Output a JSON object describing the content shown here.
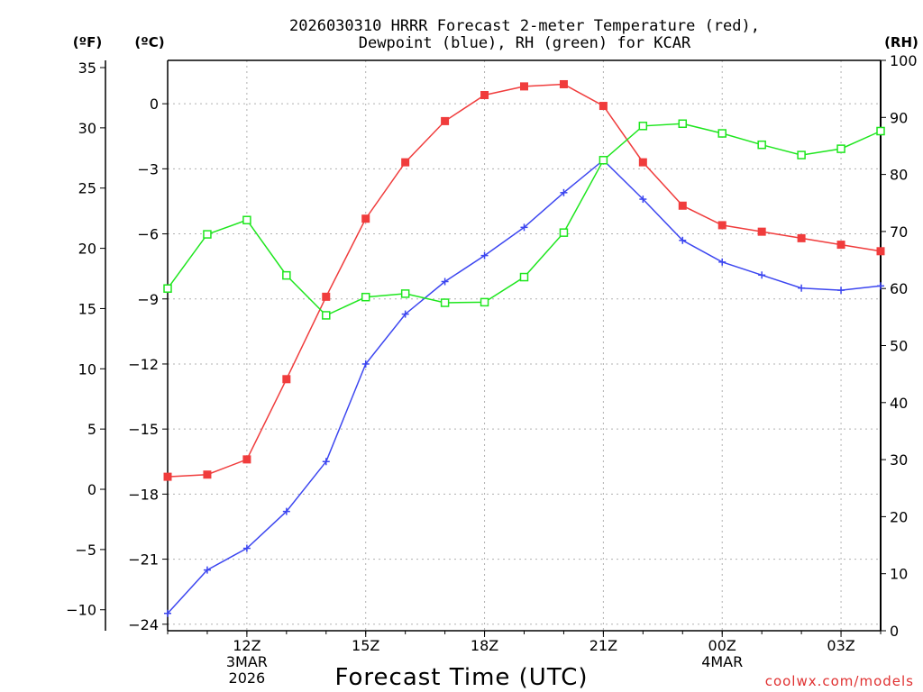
{
  "chart_data": {
    "type": "line",
    "title_line1": "2026030310 HRRR Forecast 2-meter Temperature (red),",
    "title_line2": "Dewpoint (blue), RH (green) for KCAR",
    "left_unit_f": "(ºF)",
    "left_unit_c": "(ºC)",
    "right_unit": "(RH)",
    "xlabel": "Forecast Time (UTC)",
    "credit": "coolwx.com/models",
    "x_hours": [
      10,
      11,
      12,
      13,
      14,
      15,
      16,
      17,
      18,
      19,
      20,
      21,
      22,
      23,
      24,
      25,
      26,
      27,
      28
    ],
    "x_range": [
      10,
      28
    ],
    "y_celsius_range": [
      -24.3,
      2.0
    ],
    "y_rh_range": [
      0,
      100
    ],
    "celsius_ticks": [
      {
        "v": 0,
        "label": "0"
      },
      {
        "v": -3,
        "label": "−3"
      },
      {
        "v": -6,
        "label": "−6"
      },
      {
        "v": -9,
        "label": "−9"
      },
      {
        "v": -12,
        "label": "−12"
      },
      {
        "v": -15,
        "label": "−15"
      },
      {
        "v": -18,
        "label": "−18"
      },
      {
        "v": -21,
        "label": "−21"
      },
      {
        "v": -24,
        "label": "−24"
      }
    ],
    "fahrenheit_ticks": [
      {
        "v": 35,
        "label": "35"
      },
      {
        "v": 30,
        "label": "30"
      },
      {
        "v": 25,
        "label": "25"
      },
      {
        "v": 20,
        "label": "20"
      },
      {
        "v": 15,
        "label": "15"
      },
      {
        "v": 10,
        "label": "10"
      },
      {
        "v": 5,
        "label": "5"
      },
      {
        "v": 0,
        "label": "0"
      },
      {
        "v": -5,
        "label": "−5"
      },
      {
        "v": -10,
        "label": "−10"
      }
    ],
    "rh_ticks": [
      {
        "v": 100,
        "label": "100"
      },
      {
        "v": 90,
        "label": "90"
      },
      {
        "v": 80,
        "label": "80"
      },
      {
        "v": 70,
        "label": "70"
      },
      {
        "v": 60,
        "label": "60"
      },
      {
        "v": 50,
        "label": "50"
      },
      {
        "v": 40,
        "label": "40"
      },
      {
        "v": 30,
        "label": "30"
      },
      {
        "v": 20,
        "label": "20"
      },
      {
        "v": 10,
        "label": "10"
      },
      {
        "v": 0,
        "label": "0"
      }
    ],
    "x_ticks": [
      {
        "h": 12,
        "lines": [
          "12Z",
          "3MAR",
          "2026"
        ]
      },
      {
        "h": 15,
        "lines": [
          "15Z"
        ]
      },
      {
        "h": 18,
        "lines": [
          "18Z"
        ]
      },
      {
        "h": 21,
        "lines": [
          "21Z"
        ]
      },
      {
        "h": 24,
        "lines": [
          "00Z",
          "4MAR"
        ]
      },
      {
        "h": 27,
        "lines": [
          "03Z"
        ]
      }
    ],
    "series": [
      {
        "name": "Temperature",
        "axis": "celsius",
        "color": "#f03c3c",
        "marker": "filled-square",
        "values": [
          -17.2,
          -17.1,
          -16.4,
          -12.7,
          -8.9,
          -5.3,
          -2.7,
          -0.8,
          0.4,
          0.8,
          0.9,
          -0.1,
          -2.7,
          -4.7,
          -5.6,
          -5.9,
          -6.2,
          -6.5,
          -6.8
        ]
      },
      {
        "name": "Dewpoint",
        "axis": "celsius",
        "color": "#3c46f0",
        "marker": "plus",
        "values": [
          -23.5,
          -21.5,
          -20.5,
          -18.8,
          -16.5,
          -12.0,
          -9.7,
          -8.2,
          -7.0,
          -5.7,
          -4.1,
          -2.6,
          -4.4,
          -6.3,
          -7.3,
          -7.9,
          -8.5,
          -8.6,
          -8.4
        ]
      },
      {
        "name": "RH",
        "axis": "rh",
        "color": "#1ee61e",
        "marker": "open-square",
        "values": [
          60,
          69.5,
          72,
          62.3,
          55.3,
          58.5,
          59.1,
          57.5,
          57.6,
          62,
          69.8,
          82.5,
          88.5,
          88.9,
          87.2,
          85.2,
          83.4,
          84.5,
          87.6
        ]
      }
    ]
  }
}
